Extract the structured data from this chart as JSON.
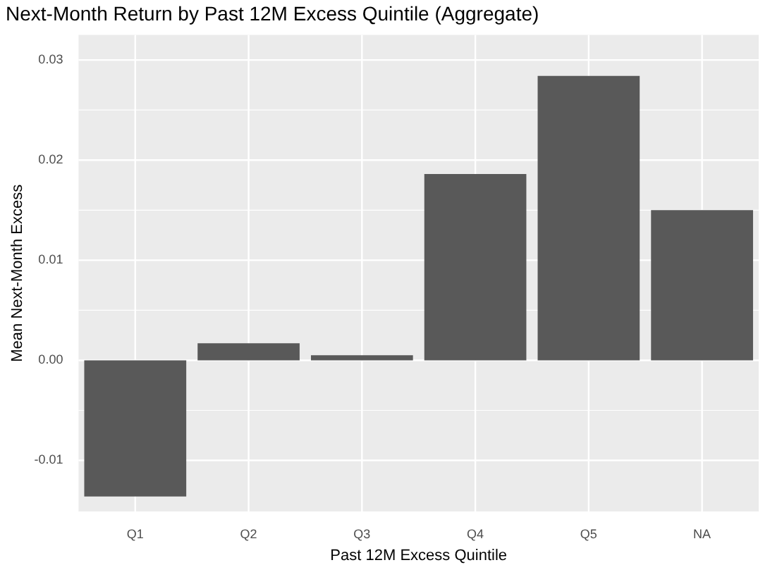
{
  "chart_data": {
    "type": "bar",
    "title": "Next-Month Return by Past 12M Excess Quintile (Aggregate)",
    "xlabel": "Past 12M Excess Quintile",
    "ylabel": "Mean Next-Month Excess",
    "categories": [
      "Q1",
      "Q2",
      "Q3",
      "Q4",
      "Q5",
      "NA"
    ],
    "values": [
      -0.0136,
      0.0017,
      0.0005,
      0.0186,
      0.0284,
      0.015
    ],
    "color": "#595959",
    "ylim": [
      -0.0151,
      0.0325
    ],
    "yticks": [
      {
        "value": -0.01,
        "label": "-0.01"
      },
      {
        "value": 0,
        "label": "0.00"
      },
      {
        "value": 0.01,
        "label": "0.01"
      },
      {
        "value": 0.02,
        "label": "0.02"
      },
      {
        "value": 0.03,
        "label": "0.03"
      }
    ],
    "grid": true
  }
}
